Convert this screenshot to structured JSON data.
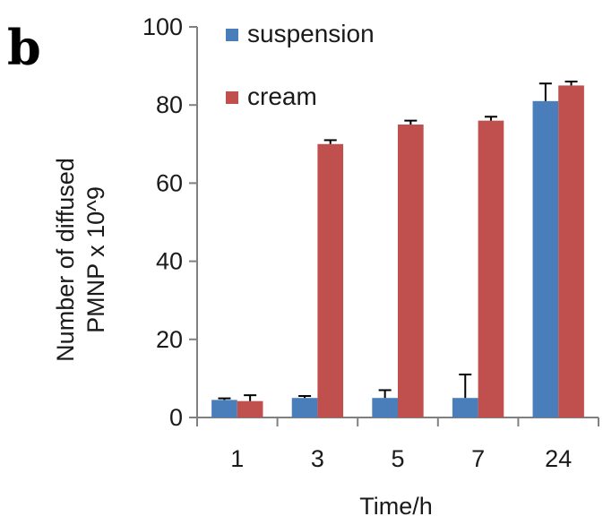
{
  "panel_label": "b",
  "chart_data": {
    "type": "bar",
    "categories": [
      "1",
      "3",
      "5",
      "7",
      "24"
    ],
    "series": [
      {
        "name": "suspension",
        "color": "#4a7ebb",
        "values": [
          4.5,
          5,
          5,
          5,
          81
        ],
        "errors": [
          0.4,
          0.5,
          2,
          6,
          4.5
        ]
      },
      {
        "name": "cream",
        "color": "#c0504d",
        "values": [
          4.2,
          70,
          75,
          76,
          85
        ],
        "errors": [
          1.5,
          1,
          1,
          1,
          1
        ]
      }
    ],
    "xlabel": "Time/h",
    "ylabel_lines": [
      "Number of diffused",
      "PMNP x 10^9"
    ],
    "ylim": [
      0,
      100
    ],
    "yticks": [
      0,
      20,
      40,
      60,
      80,
      100
    ],
    "legend_position": "top-left"
  }
}
